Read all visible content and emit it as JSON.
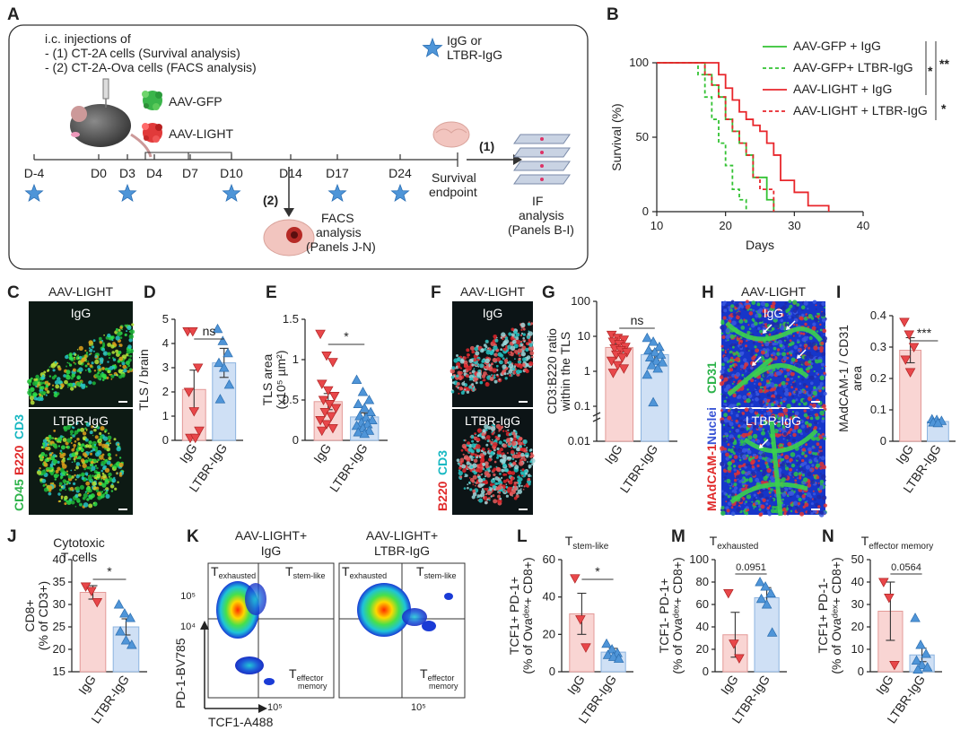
{
  "panels": {
    "A": "A",
    "B": "B",
    "C": "C",
    "D": "D",
    "E": "E",
    "F": "F",
    "G": "G",
    "H": "H",
    "I": "I",
    "J": "J",
    "K": "K",
    "L": "L",
    "M": "M",
    "N": "N"
  },
  "panelA": {
    "lines": [
      "i.c. injections of",
      "- (1) CT-2A cells (Survival analysis)",
      "- (2) CT-2A-Ova cells (FACS analysis)"
    ],
    "legend_top": "IgG or",
    "legend_bot": "LTBR-IgG",
    "aav_gfp": "AAV-GFP",
    "aav_light": "AAV-LIGHT",
    "days": [
      "D-4",
      "D0",
      "D3",
      "D4",
      "D7",
      "D10",
      "D14",
      "D17",
      "D24"
    ],
    "survival_l1": "Survival",
    "survival_l2": "endpoint",
    "arrow1": "(1)",
    "arrow2": "(2)",
    "if_l1": "IF",
    "if_l2": "analysis",
    "if_l3": "(Panels B-I)",
    "facs_l1": "FACS",
    "facs_l2": "analysis",
    "facs_l3": "(Panels J-N)"
  },
  "panelB": {
    "legend": [
      "AAV-GFP + IgG",
      "AAV-GFP+ LTBR-IgG",
      "AAV-LIGHT + IgG",
      "AAV-LIGHT + LTBR-IgG"
    ],
    "sig_outer": "**",
    "sig_mid": "*",
    "sig_low": "*"
  },
  "img_labels": {
    "aav_light": "AAV-LIGHT",
    "igg": "IgG",
    "ltbr": "LTBR-IgG",
    "c_ch1": "CD45",
    "c_ch2": "B220",
    "c_ch3": "CD3",
    "f_ch1": "B220",
    "f_ch2": "CD3",
    "h_ch1": "MAdCAM-1",
    "h_ch2": "Nuclei",
    "h_ch3": "CD31"
  },
  "panelD": {
    "ns": "ns"
  },
  "panelE": {
    "sig": "*"
  },
  "panelG": {
    "ns": "ns"
  },
  "panelI": {
    "sig": "***"
  },
  "panelJ": {
    "title1": "Cytotoxic",
    "title2": "T cells",
    "sig": "*"
  },
  "panelK": {
    "title_left1": "AAV-LIGHT+",
    "title_left2": "IgG",
    "title_right1": "AAV-LIGHT+",
    "title_right2": "LTBR-IgG",
    "q_exh": "T",
    "q_exh_sub": "exhausted",
    "q_stem": "T",
    "q_stem_sub": "stem-like",
    "q_eff": "T",
    "q_eff_sub1": "effector",
    "q_eff_sub2": "memory",
    "ylab": "PD-1-BV785",
    "xlab": "TCF1-A488",
    "tick_105": "10⁵",
    "tick_104": "10⁴"
  },
  "panelL": {
    "title": "T",
    "title_sub": "stem-like",
    "sig": "*"
  },
  "panelM": {
    "title": "T",
    "title_sub": "exhausted",
    "p": "0.0951"
  },
  "panelN": {
    "title": "T",
    "title_sub": "effector memory",
    "p": "0.0564"
  },
  "colors": {
    "igg_fill": "#f9d5d3",
    "igg_marker": "#e8474a",
    "ltbr_fill": "#cfe0f5",
    "ltbr_marker": "#4f95d8",
    "gfp": "#33c233",
    "light": "#e8262b"
  },
  "chart_data": [
    {
      "panel": "B",
      "type": "line",
      "title": "",
      "xlabel": "Days",
      "ylabel": "Survival (%)",
      "xlim": [
        10,
        40
      ],
      "ylim": [
        0,
        100
      ],
      "xticks": [
        10,
        20,
        30,
        40
      ],
      "yticks": [
        0,
        50,
        100
      ],
      "series": [
        {
          "name": "AAV-GFP + IgG",
          "color": "#33c233",
          "dashed": false,
          "x": [
            10,
            16,
            17,
            18,
            19,
            20,
            21,
            22,
            23,
            24,
            26,
            27
          ],
          "y": [
            100,
            100,
            92,
            85,
            77,
            62,
            54,
            46,
            38,
            23,
            8,
            0
          ]
        },
        {
          "name": "AAV-GFP+ LTBR-IgG",
          "color": "#33c233",
          "dashed": true,
          "x": [
            10,
            15,
            16,
            17,
            18,
            19,
            20,
            21,
            22,
            23
          ],
          "y": [
            100,
            100,
            92,
            77,
            62,
            46,
            31,
            15,
            8,
            0
          ]
        },
        {
          "name": "AAV-LIGHT + IgG",
          "color": "#e8262b",
          "dashed": false,
          "x": [
            10,
            18,
            19,
            20,
            21,
            22,
            23,
            24,
            25,
            26,
            27,
            28,
            30,
            32,
            35
          ],
          "y": [
            100,
            100,
            92,
            83,
            75,
            67,
            62,
            58,
            54,
            46,
            38,
            21,
            13,
            4,
            0
          ]
        },
        {
          "name": "AAV-LIGHT + LTBR-IgG",
          "color": "#e8262b",
          "dashed": true,
          "x": [
            10,
            16,
            17,
            18,
            19,
            20,
            21,
            22,
            23,
            24,
            25,
            27
          ],
          "y": [
            100,
            100,
            92,
            85,
            77,
            62,
            54,
            46,
            38,
            23,
            15,
            0
          ]
        }
      ]
    },
    {
      "panel": "D",
      "type": "bar",
      "ylabel": "TLS / brain",
      "ylim": [
        0,
        5
      ],
      "yticks": [
        0,
        1,
        2,
        3,
        4,
        5
      ],
      "categories": [
        "IgG",
        "LTBR-IgG"
      ],
      "values": [
        2.1,
        3.2
      ],
      "errors": [
        0.8,
        0.6
      ],
      "points": [
        [
          4.5,
          4.5,
          3.0,
          2.0,
          1.2,
          0.4,
          0.1,
          0.1
        ],
        [
          4.6,
          4.1,
          3.6,
          3.2,
          3.0,
          2.3,
          1.7
        ]
      ]
    },
    {
      "panel": "E",
      "type": "bar",
      "ylabel": "TLS area (x10⁵ µm²)",
      "ylim": [
        0,
        1.5
      ],
      "yticks": [
        0,
        0.5,
        1,
        1.5
      ],
      "categories": [
        "IgG",
        "LTBR-IgG"
      ],
      "values": [
        0.48,
        0.29
      ],
      "errors": [
        0.1,
        0.05
      ],
      "points": [
        [
          1.32,
          1.05,
          0.97,
          0.7,
          0.62,
          0.55,
          0.5,
          0.45,
          0.4,
          0.35,
          0.3,
          0.25,
          0.2,
          0.15,
          0.12
        ],
        [
          0.75,
          0.6,
          0.5,
          0.45,
          0.4,
          0.35,
          0.3,
          0.28,
          0.25,
          0.22,
          0.2,
          0.18,
          0.15,
          0.12,
          0.1,
          0.08
        ]
      ]
    },
    {
      "panel": "G",
      "type": "bar",
      "ylabel": "CD3:B220 ratio within the TLS",
      "yscale": "log",
      "ylim": [
        0.01,
        100
      ],
      "yticks": [
        "0.01",
        "0.1",
        "1",
        "10",
        "100"
      ],
      "categories": [
        "IgG",
        "LTBR-IgG"
      ],
      "values": [
        4.8,
        3.0
      ],
      "errors": [
        1.3,
        0.9
      ],
      "points": [
        [
          11,
          9,
          8,
          7,
          6,
          5,
          4.5,
          4,
          3.5,
          3,
          2.5,
          2,
          1.5,
          1.2,
          0.9
        ],
        [
          9,
          7,
          5,
          4,
          3.5,
          3,
          2.5,
          2,
          1.8,
          1.5,
          1.2,
          0.8,
          0.13
        ]
      ]
    },
    {
      "panel": "I",
      "type": "bar",
      "ylabel": "MAdCAM-1 / CD31 area",
      "ylim": [
        0,
        0.4
      ],
      "yticks": [
        0,
        0.1,
        0.2,
        0.3,
        0.4
      ],
      "categories": [
        "IgG",
        "LTBR-IgG"
      ],
      "values": [
        0.29,
        0.063
      ],
      "errors": [
        0.04,
        0.006
      ],
      "points": [
        [
          0.38,
          0.34,
          0.3,
          0.26,
          0.22
        ],
        [
          0.07,
          0.068,
          0.065,
          0.06,
          0.058
        ]
      ]
    },
    {
      "panel": "J",
      "type": "bar",
      "title": "Cytotoxic T cells",
      "ylabel": "CD8+ (% of CD3+)",
      "ylim": [
        15,
        40
      ],
      "yticks": [
        15,
        20,
        25,
        30,
        35,
        40
      ],
      "categories": [
        "IgG",
        "LTBR-IgG"
      ],
      "values": [
        32.7,
        25
      ],
      "errors": [
        1.5,
        1.8
      ],
      "points": [
        [
          34,
          33,
          30.5
        ],
        [
          30,
          28,
          27,
          24,
          22,
          21
        ]
      ]
    },
    {
      "panel": "L",
      "type": "bar",
      "ylabel": "TCF1+ PD-1+ (% of Ova-dex+ CD8+)",
      "ylim": [
        0,
        60
      ],
      "yticks": [
        0,
        20,
        40,
        60
      ],
      "categories": [
        "IgG",
        "LTBR-IgG"
      ],
      "values": [
        31,
        10.5
      ],
      "errors": [
        11,
        2
      ],
      "points": [
        [
          50,
          28,
          13
        ],
        [
          15,
          12,
          10,
          9,
          8,
          7
        ]
      ]
    },
    {
      "panel": "M",
      "type": "bar",
      "ylabel": "TCF1- PD-1+ (% of Ova-dex+ CD8+)",
      "ylim": [
        0,
        100
      ],
      "yticks": [
        0,
        20,
        40,
        60,
        80,
        100
      ],
      "categories": [
        "IgG",
        "LTBR-IgG"
      ],
      "values": [
        33,
        66
      ],
      "errors": [
        20,
        9
      ],
      "points": [
        [
          70,
          25,
          12
        ],
        [
          80,
          76,
          70,
          65,
          60,
          35
        ]
      ]
    },
    {
      "panel": "N",
      "type": "bar",
      "ylabel": "TCF1+ PD-1- (% of Ova-dex+ CD8+)",
      "ylim": [
        0,
        50
      ],
      "yticks": [
        0,
        10,
        20,
        30,
        40,
        50
      ],
      "categories": [
        "IgG",
        "LTBR-IgG"
      ],
      "values": [
        27,
        7.5
      ],
      "errors": [
        13,
        3
      ],
      "points": [
        [
          40,
          33,
          3
        ],
        [
          24,
          12,
          8,
          5,
          3,
          2,
          1
        ]
      ]
    }
  ]
}
